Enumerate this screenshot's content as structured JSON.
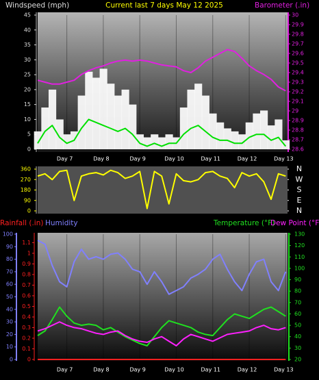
{
  "chart_data": [
    {
      "type": "line",
      "title": "Current last 7 days May 12 2025",
      "ylabel": "Windspeed (mph)",
      "y2label": "Barometer (.in)",
      "x": [
        6.2,
        6.4,
        6.6,
        6.8,
        7.0,
        7.2,
        7.4,
        7.6,
        7.8,
        8.0,
        8.2,
        8.4,
        8.6,
        8.8,
        9.0,
        9.2,
        9.4,
        9.6,
        9.8,
        10.0,
        10.2,
        10.4,
        10.6,
        10.8,
        11.0,
        11.2,
        11.4,
        11.6,
        11.8,
        12.0,
        12.2,
        12.4,
        12.6,
        12.8,
        13.0
      ],
      "xlim": [
        6.2,
        13.05
      ],
      "xticks": [
        {
          "value": 7,
          "label": "Day 7"
        },
        {
          "value": 8,
          "label": "Day 8"
        },
        {
          "value": 9,
          "label": "Day 9"
        },
        {
          "value": 10,
          "label": "Day 10"
        },
        {
          "value": 11,
          "label": "Day 11"
        },
        {
          "value": 12,
          "label": "Day 12"
        },
        {
          "value": 13,
          "label": "Day 13"
        }
      ],
      "ylim": [
        0,
        45
      ],
      "yticks": [
        0,
        5,
        10,
        15,
        20,
        25,
        30,
        35,
        40,
        45
      ],
      "y2lim": [
        28.6,
        30
      ],
      "y2ticks": [
        28.6,
        28.7,
        28.8,
        28.9,
        29,
        29.1,
        29.2,
        29.3,
        29.4,
        29.5,
        29.6,
        29.7,
        29.8,
        29.9,
        30
      ],
      "series": [
        {
          "color": "#ffffff",
          "style": "bars",
          "values": [
            6,
            14,
            20,
            10,
            5,
            6,
            18,
            26,
            24,
            27,
            22,
            18,
            20,
            15,
            5,
            4,
            5,
            4,
            5,
            4,
            14,
            20,
            22,
            18,
            12,
            9,
            7,
            6,
            5,
            9,
            12,
            13,
            8,
            10,
            3
          ]
        },
        {
          "color": "#00e000",
          "style": "line",
          "values": [
            2,
            6,
            8,
            4,
            2,
            3,
            7,
            10,
            9,
            8,
            7,
            6,
            7,
            5,
            2,
            1,
            2,
            1,
            2,
            2,
            5,
            7,
            8,
            6,
            4,
            3,
            3,
            2,
            2,
            4,
            5,
            5,
            3,
            4,
            1
          ]
        },
        {
          "color": "#e020e0",
          "style": "line",
          "axis": "y2",
          "values": [
            29.32,
            29.3,
            29.28,
            29.28,
            29.3,
            29.32,
            29.38,
            29.42,
            29.45,
            29.47,
            29.5,
            29.52,
            29.53,
            29.52,
            29.53,
            29.52,
            29.5,
            29.48,
            29.47,
            29.46,
            29.42,
            29.4,
            29.45,
            29.52,
            29.56,
            29.6,
            29.64,
            29.62,
            29.55,
            29.47,
            29.42,
            29.38,
            29.33,
            29.25,
            29.21
          ]
        }
      ]
    },
    {
      "type": "line",
      "x": [
        6.2,
        6.4,
        6.6,
        6.8,
        7.0,
        7.2,
        7.4,
        7.6,
        7.8,
        8.0,
        8.2,
        8.4,
        8.6,
        8.8,
        9.0,
        9.2,
        9.4,
        9.6,
        9.8,
        10.0,
        10.2,
        10.4,
        10.6,
        10.8,
        11.0,
        11.2,
        11.4,
        11.6,
        11.8,
        12.0,
        12.2,
        12.4,
        12.6,
        12.8,
        13.0
      ],
      "xlim": [
        6.2,
        13.05
      ],
      "ylim": [
        0,
        360
      ],
      "yticks": [
        0,
        90,
        180,
        270,
        360
      ],
      "y2lim": [
        0,
        360
      ],
      "y2ticks": [
        {
          "value": 360,
          "label": "N"
        },
        {
          "value": 270,
          "label": "W"
        },
        {
          "value": 180,
          "label": "S"
        },
        {
          "value": 90,
          "label": "E"
        },
        {
          "value": 0,
          "label": "N"
        }
      ],
      "series": [
        {
          "color": "#ffff00",
          "style": "line",
          "values": [
            300,
            320,
            270,
            340,
            350,
            90,
            300,
            320,
            330,
            310,
            350,
            330,
            280,
            300,
            340,
            20,
            340,
            300,
            60,
            320,
            260,
            250,
            270,
            330,
            340,
            300,
            280,
            200,
            330,
            300,
            320,
            250,
            100,
            320,
            300
          ]
        }
      ]
    },
    {
      "type": "line",
      "x": [
        6.2,
        6.4,
        6.6,
        6.8,
        7.0,
        7.2,
        7.4,
        7.6,
        7.8,
        8.0,
        8.2,
        8.4,
        8.6,
        8.8,
        9.0,
        9.2,
        9.4,
        9.6,
        9.8,
        10.0,
        10.2,
        10.4,
        10.6,
        10.8,
        11.0,
        11.2,
        11.4,
        11.6,
        11.8,
        12.0,
        12.2,
        12.4,
        12.6,
        12.8,
        13.0
      ],
      "xlim": [
        6.2,
        13.05
      ],
      "xticks": [
        {
          "value": 7,
          "label": "Day 7"
        },
        {
          "value": 8,
          "label": "Day 8"
        },
        {
          "value": 9,
          "label": "Day 9"
        },
        {
          "value": 10,
          "label": "Day 10"
        },
        {
          "value": 11,
          "label": "Day 11"
        },
        {
          "value": 12,
          "label": "Day 12"
        },
        {
          "value": 13,
          "label": "Day 13"
        }
      ],
      "ylim": [
        0,
        100
      ],
      "yticks": [
        0,
        10,
        20,
        30,
        40,
        50,
        60,
        70,
        80,
        90,
        100
      ],
      "y2lim": [
        20,
        130
      ],
      "y2ticks": [
        20,
        30,
        40,
        50,
        60,
        70,
        80,
        90,
        100,
        110,
        120,
        130
      ],
      "y3lim": [
        0,
        1.18
      ],
      "y3ticks": [
        0,
        0.1,
        0.2,
        0.3,
        0.4,
        0.5,
        0.6,
        0.7,
        0.8,
        0.9,
        1,
        1.1
      ],
      "series": [
        {
          "name": "Rainfall (.in)",
          "color": "#ff2020",
          "style": "line",
          "axis": "y3",
          "values": [
            0,
            0,
            0,
            0,
            0,
            0,
            0,
            0,
            0,
            0,
            0,
            0,
            0,
            0,
            0,
            0,
            0,
            0,
            0,
            0,
            0,
            0,
            0,
            0,
            0,
            0,
            0,
            0,
            0,
            0,
            0,
            0,
            0,
            0,
            0
          ]
        },
        {
          "name": "Humidity",
          "color": "#8080ff",
          "style": "line",
          "values": [
            95,
            92,
            75,
            62,
            58,
            78,
            88,
            80,
            82,
            80,
            84,
            85,
            80,
            72,
            70,
            60,
            70,
            62,
            52,
            55,
            58,
            65,
            68,
            72,
            80,
            84,
            72,
            62,
            55,
            68,
            78,
            80,
            62,
            55,
            70
          ]
        },
        {
          "name": "Temperature (°F)",
          "color": "#20e020",
          "style": "line",
          "axis": "y2",
          "values": [
            41,
            45,
            55,
            66,
            58,
            52,
            50,
            51,
            50,
            46,
            48,
            44,
            40,
            37,
            34,
            32,
            40,
            48,
            54,
            52,
            50,
            48,
            44,
            42,
            41,
            48,
            55,
            60,
            58,
            56,
            60,
            64,
            66,
            62,
            58
          ]
        },
        {
          "name": "Dew Point (°F)",
          "color": "#ff20ff",
          "style": "line",
          "axis": "y2",
          "values": [
            45,
            47,
            50,
            53,
            50,
            48,
            47,
            45,
            43,
            42,
            44,
            45,
            41,
            38,
            36,
            35,
            38,
            40,
            36,
            32,
            38,
            42,
            40,
            38,
            36,
            39,
            42,
            43,
            44,
            45,
            48,
            50,
            47,
            46,
            48
          ]
        }
      ]
    }
  ]
}
